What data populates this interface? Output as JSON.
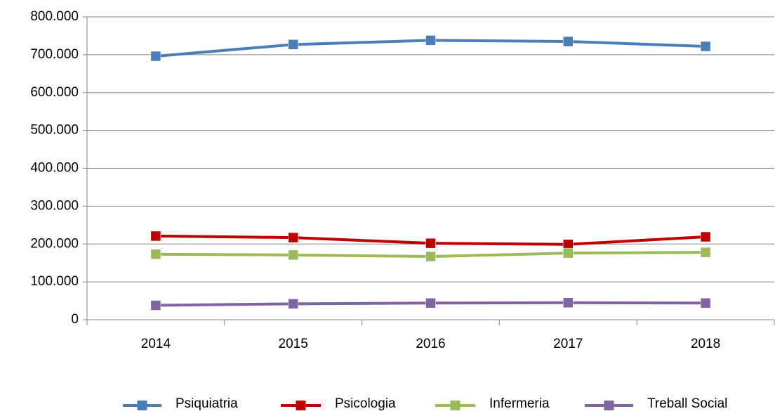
{
  "chart_data": {
    "type": "line",
    "categories": [
      "2014",
      "2015",
      "2016",
      "2017",
      "2018"
    ],
    "series": [
      {
        "name": "Psiquiatria",
        "color": "#4a7ebb",
        "values": [
          696000,
          727000,
          738000,
          735000,
          722000
        ]
      },
      {
        "name": "Psicologia",
        "color": "#c00000",
        "values": [
          221000,
          217000,
          202000,
          199000,
          219000
        ]
      },
      {
        "name": "Infermeria",
        "color": "#9bbb59",
        "values": [
          173000,
          171000,
          167000,
          176000,
          178000
        ]
      },
      {
        "name": "Treball Social",
        "color": "#8064a2",
        "values": [
          38000,
          42000,
          44000,
          45000,
          44000
        ]
      }
    ],
    "ylim": [
      0,
      800000
    ],
    "yticks": [
      0,
      {
        "value": 100000,
        "label": "100.000"
      },
      {
        "value": 200000,
        "label": "200.000"
      },
      {
        "value": 300000,
        "label": "300.000"
      },
      {
        "value": 400000,
        "label": "400.000"
      },
      {
        "value": 500000,
        "label": "500.000"
      },
      {
        "value": 600000,
        "label": "600.000"
      },
      {
        "value": 700000,
        "label": "700.000"
      },
      {
        "value": 800000,
        "label": "800.000"
      }
    ],
    "grid": true,
    "legend": "bottom"
  }
}
